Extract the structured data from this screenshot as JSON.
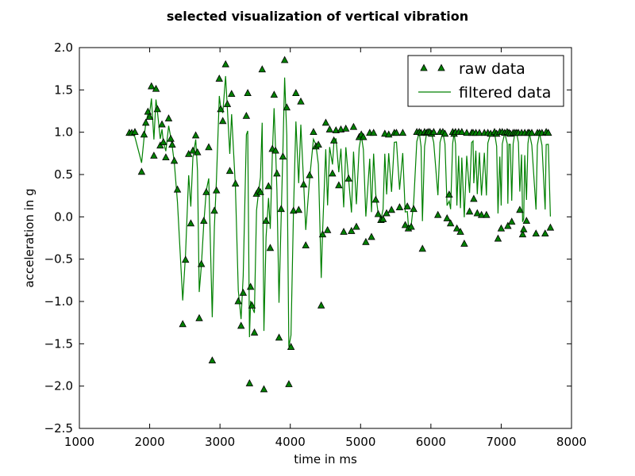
{
  "chart_data": {
    "type": "line",
    "title": "selected visualization of vertical vibration",
    "xlabel": "time in ms",
    "ylabel": "acceleration in g",
    "xlim": [
      1000,
      8000
    ],
    "ylim": [
      -2.5,
      2.0
    ],
    "x_ticks": [
      1000,
      2000,
      3000,
      4000,
      5000,
      6000,
      7000,
      8000
    ],
    "y_ticks": [
      -2.5,
      -2.0,
      -1.5,
      -1.0,
      -0.5,
      0.0,
      0.5,
      1.0,
      1.5,
      2.0
    ],
    "x_tick_labels": [
      "1000",
      "2000",
      "3000",
      "4000",
      "5000",
      "6000",
      "7000",
      "8000"
    ],
    "y_tick_labels": [
      "−2.5",
      "−2.0",
      "−1.5",
      "−1.0",
      "−0.5",
      "0.0",
      "0.5",
      "1.0",
      "1.5",
      "2.0"
    ],
    "grid": false,
    "legend_position": "top-right",
    "colors": {
      "line": "#008000",
      "marker_fill": "#008000",
      "marker_edge": "#000000"
    },
    "series": [
      {
        "name": "raw data",
        "style": "triangle-markers",
        "points": [
          [
            1710,
            0.99
          ],
          [
            1745,
            0.99
          ],
          [
            1790,
            1.0
          ],
          [
            1885,
            0.53
          ],
          [
            1920,
            0.97
          ],
          [
            1945,
            1.11
          ],
          [
            1975,
            1.24
          ],
          [
            2000,
            1.18
          ],
          [
            2025,
            1.54
          ],
          [
            2060,
            0.72
          ],
          [
            2090,
            1.51
          ],
          [
            2110,
            1.27
          ],
          [
            2150,
            0.84
          ],
          [
            2175,
            1.09
          ],
          [
            2195,
            0.88
          ],
          [
            2230,
            0.7
          ],
          [
            2270,
            1.16
          ],
          [
            2300,
            0.92
          ],
          [
            2320,
            0.85
          ],
          [
            2350,
            0.66
          ],
          [
            2395,
            0.32
          ],
          [
            2470,
            -1.27
          ],
          [
            2510,
            -0.51
          ],
          [
            2555,
            0.74
          ],
          [
            2585,
            -0.08
          ],
          [
            2615,
            0.78
          ],
          [
            2655,
            0.96
          ],
          [
            2680,
            0.76
          ],
          [
            2705,
            -1.2
          ],
          [
            2735,
            -0.56
          ],
          [
            2770,
            -0.05
          ],
          [
            2805,
            0.29
          ],
          [
            2840,
            0.82
          ],
          [
            2890,
            -1.7
          ],
          [
            2920,
            0.07
          ],
          [
            2950,
            0.31
          ],
          [
            2990,
            1.63
          ],
          [
            3010,
            1.27
          ],
          [
            3040,
            1.13
          ],
          [
            3080,
            1.8
          ],
          [
            3105,
            1.33
          ],
          [
            3140,
            0.54
          ],
          [
            3165,
            1.45
          ],
          [
            3220,
            0.39
          ],
          [
            3260,
            -1.0
          ],
          [
            3300,
            -1.29
          ],
          [
            3330,
            -0.9
          ],
          [
            3375,
            1.19
          ],
          [
            3395,
            1.46
          ],
          [
            3420,
            -1.97
          ],
          [
            3435,
            -0.83
          ],
          [
            3455,
            -1.05
          ],
          [
            3490,
            -1.37
          ],
          [
            3520,
            0.27
          ],
          [
            3550,
            0.31
          ],
          [
            3575,
            0.29
          ],
          [
            3600,
            1.74
          ],
          [
            3625,
            -2.04
          ],
          [
            3655,
            -0.05
          ],
          [
            3690,
            0.36
          ],
          [
            3715,
            -0.37
          ],
          [
            3745,
            0.8
          ],
          [
            3770,
            1.44
          ],
          [
            3790,
            0.78
          ],
          [
            3810,
            0.51
          ],
          [
            3840,
            -1.43
          ],
          [
            3870,
            0.09
          ],
          [
            3895,
            0.71
          ],
          [
            3920,
            1.85
          ],
          [
            3950,
            1.29
          ],
          [
            3980,
            -1.98
          ],
          [
            4010,
            -1.54
          ],
          [
            4045,
            0.07
          ],
          [
            4080,
            1.46
          ],
          [
            4120,
            0.08
          ],
          [
            4150,
            1.36
          ],
          [
            4190,
            0.38
          ],
          [
            4220,
            -0.34
          ],
          [
            4275,
            0.49
          ],
          [
            4330,
            1.0
          ],
          [
            4365,
            0.83
          ],
          [
            4400,
            0.85
          ],
          [
            4440,
            -1.05
          ],
          [
            4460,
            -0.21
          ],
          [
            4505,
            1.11
          ],
          [
            4530,
            -0.16
          ],
          [
            4560,
            1.03
          ],
          [
            4600,
            0.51
          ],
          [
            4620,
            0.9
          ],
          [
            4650,
            1.02
          ],
          [
            4690,
            0.37
          ],
          [
            4720,
            1.03
          ],
          [
            4760,
            -0.18
          ],
          [
            4790,
            1.04
          ],
          [
            4830,
            0.45
          ],
          [
            4870,
            -0.17
          ],
          [
            4900,
            1.06
          ],
          [
            4940,
            -0.12
          ],
          [
            4980,
            0.94
          ],
          [
            5010,
            0.97
          ],
          [
            5040,
            0.94
          ],
          [
            5075,
            -0.3
          ],
          [
            5130,
            0.99
          ],
          [
            5155,
            -0.24
          ],
          [
            5185,
            0.99
          ],
          [
            5215,
            0.2
          ],
          [
            5250,
            0.03
          ],
          [
            5290,
            -0.04
          ],
          [
            5320,
            -0.03
          ],
          [
            5345,
            0.98
          ],
          [
            5370,
            0.04
          ],
          [
            5400,
            0.97
          ],
          [
            5440,
            0.08
          ],
          [
            5480,
            0.99
          ],
          [
            5510,
            0.99
          ],
          [
            5555,
            0.11
          ],
          [
            5600,
            0.99
          ],
          [
            5635,
            -0.1
          ],
          [
            5665,
            0.12
          ],
          [
            5680,
            -0.14
          ],
          [
            5720,
            -0.12
          ],
          [
            5755,
            0.09
          ],
          [
            5800,
            1.0
          ],
          [
            5835,
            1.0
          ],
          [
            5860,
            0.99
          ],
          [
            5880,
            -0.38
          ],
          [
            5910,
            1.0
          ],
          [
            5940,
            0.99
          ],
          [
            5960,
            1.0
          ],
          [
            5985,
            1.0
          ],
          [
            6010,
            0.98
          ],
          [
            6040,
            1.0
          ],
          [
            6100,
            0.02
          ],
          [
            6130,
            1.0
          ],
          [
            6170,
            1.0
          ],
          [
            6200,
            0.98
          ],
          [
            6230,
            -0.02
          ],
          [
            6260,
            0.26
          ],
          [
            6280,
            -0.08
          ],
          [
            6310,
            1.0
          ],
          [
            6330,
            0.98
          ],
          [
            6350,
            1.0
          ],
          [
            6370,
            -0.14
          ],
          [
            6395,
            1.0
          ],
          [
            6420,
            -0.18
          ],
          [
            6440,
            1.0
          ],
          [
            6475,
            -0.32
          ],
          [
            6510,
            0.99
          ],
          [
            6550,
            0.06
          ],
          [
            6580,
            0.99
          ],
          [
            6600,
            0.99
          ],
          [
            6610,
            0.21
          ],
          [
            6640,
            0.99
          ],
          [
            6660,
            0.04
          ],
          [
            6690,
            0.99
          ],
          [
            6720,
            0.02
          ],
          [
            6760,
            0.99
          ],
          [
            6790,
            0.02
          ],
          [
            6810,
            0.99
          ],
          [
            6850,
            0.98
          ],
          [
            6905,
            1.0
          ],
          [
            6935,
            0.98
          ],
          [
            6955,
            -0.26
          ],
          [
            6980,
            1.0
          ],
          [
            7000,
            -0.14
          ],
          [
            7015,
            1.0
          ],
          [
            7050,
            0.99
          ],
          [
            7085,
            1.0
          ],
          [
            7095,
            -0.11
          ],
          [
            7110,
            0.99
          ],
          [
            7130,
            0.98
          ],
          [
            7150,
            -0.06
          ],
          [
            7170,
            0.99
          ],
          [
            7195,
            0.99
          ],
          [
            7220,
            0.99
          ],
          [
            7245,
            0.99
          ],
          [
            7265,
            0.08
          ],
          [
            7290,
            0.99
          ],
          [
            7305,
            -0.21
          ],
          [
            7320,
            -0.15
          ],
          [
            7335,
            0.99
          ],
          [
            7360,
            -0.05
          ],
          [
            7380,
            0.99
          ],
          [
            7400,
            0.99
          ],
          [
            7435,
            0.99
          ],
          [
            7495,
            -0.2
          ],
          [
            7515,
            0.99
          ],
          [
            7545,
            0.99
          ],
          [
            7580,
            0.99
          ],
          [
            7625,
            -0.2
          ],
          [
            7640,
            1.0
          ],
          [
            7670,
            0.99
          ],
          [
            7700,
            -0.13
          ]
        ]
      },
      {
        "name": "filtered data",
        "style": "line"
      }
    ]
  }
}
